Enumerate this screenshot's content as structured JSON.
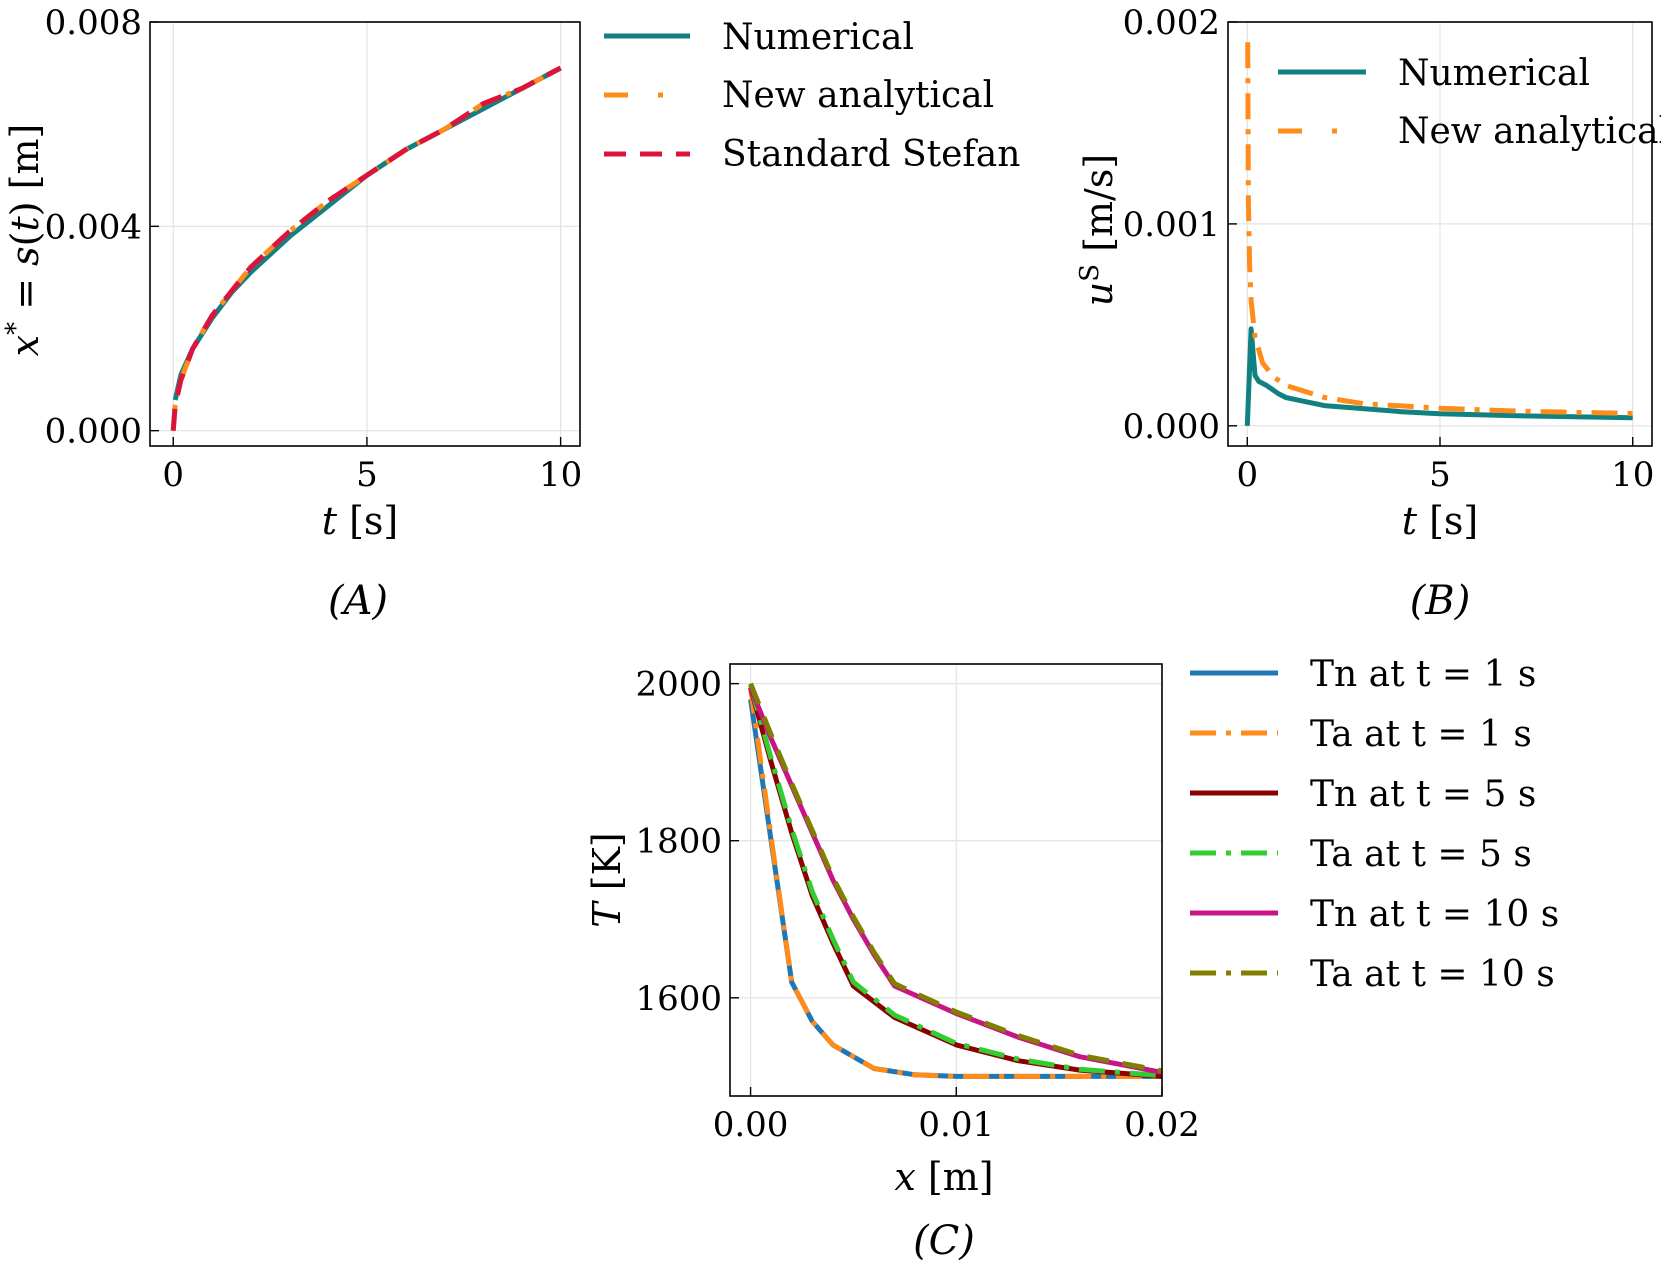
{
  "chart_data": [
    {
      "id": "A",
      "type": "line",
      "panel_label": "(A)",
      "xlabel": "t [s]",
      "ylabel": "x* = s(t) [m]",
      "xlim": [
        -0.6,
        10.5
      ],
      "ylim": [
        -0.0003,
        0.008
      ],
      "xticks": [
        0,
        5,
        10
      ],
      "xtick_labels": [
        "0",
        "5",
        "10"
      ],
      "yticks": [
        0.0,
        0.004,
        0.008
      ],
      "ytick_labels": [
        "0.000",
        "0.004",
        "0.008"
      ],
      "grid": true,
      "legend_position": "outside-right",
      "series": [
        {
          "name": "Numerical",
          "color": "#108080",
          "style": "solid",
          "x": [
            0.05,
            0.2,
            0.5,
            1,
            1.5,
            2,
            3,
            4,
            5,
            6,
            6.5,
            7,
            8,
            9,
            10
          ],
          "y": [
            0.0006,
            0.0011,
            0.0016,
            0.0022,
            0.0027,
            0.0031,
            0.0038,
            0.0044,
            0.005,
            0.0055,
            0.0057,
            0.0059,
            0.0063,
            0.0067,
            0.0071
          ]
        },
        {
          "name": "New analytical",
          "color": "#ff8c1a",
          "style": "dashdot",
          "x": [
            0,
            0.05,
            0.2,
            0.5,
            1,
            2,
            3,
            4,
            5,
            6,
            7,
            8,
            9,
            10
          ],
          "y": [
            0,
            0.0005,
            0.001,
            0.0016,
            0.00225,
            0.0032,
            0.0039,
            0.0045,
            0.005,
            0.0055,
            0.0059,
            0.0064,
            0.0067,
            0.0071
          ]
        },
        {
          "name": "Standard Stefan",
          "color": "#dc143c",
          "style": "dashed",
          "x": [
            0,
            0.05,
            0.2,
            0.5,
            1,
            2,
            3,
            4,
            5,
            6,
            7,
            8,
            9,
            10
          ],
          "y": [
            0,
            0.0005,
            0.001,
            0.0016,
            0.00225,
            0.0032,
            0.0039,
            0.0045,
            0.005,
            0.0055,
            0.0059,
            0.0064,
            0.0067,
            0.0071
          ]
        }
      ]
    },
    {
      "id": "B",
      "type": "line",
      "panel_label": "(B)",
      "xlabel": "t [s]",
      "ylabel": "u^S [m/s]",
      "xlim": [
        -0.5,
        10.5
      ],
      "ylim": [
        -0.0001,
        0.002
      ],
      "xticks": [
        0,
        5,
        10
      ],
      "xtick_labels": [
        "0",
        "5",
        "10"
      ],
      "yticks": [
        0.0,
        0.001,
        0.002
      ],
      "ytick_labels": [
        "0.000",
        "0.001",
        "0.002"
      ],
      "grid": true,
      "legend_position": "upper-right",
      "series": [
        {
          "name": "Numerical",
          "color": "#108080",
          "style": "solid",
          "x": [
            0,
            0.1,
            0.2,
            0.3,
            0.5,
            0.8,
            1,
            1.5,
            2,
            3,
            4,
            5,
            7,
            10
          ],
          "y": [
            0,
            0.00048,
            0.00025,
            0.00022,
            0.0002,
            0.00016,
            0.00014,
            0.00012,
            0.0001,
            8.5e-05,
            7e-05,
            6e-05,
            5e-05,
            4e-05
          ]
        },
        {
          "name": "New analytical",
          "color": "#ff8c1a",
          "style": "dashdot",
          "x": [
            0.01,
            0.03,
            0.06,
            0.1,
            0.2,
            0.4,
            0.7,
            1,
            2,
            3,
            5,
            7,
            10
          ],
          "y": [
            0.0019,
            0.0011,
            0.0008,
            0.00062,
            0.00044,
            0.00031,
            0.00024,
            0.0002,
            0.00014,
            0.00011,
            8.7e-05,
            7.3e-05,
            6.1e-05
          ]
        }
      ]
    },
    {
      "id": "C",
      "type": "line",
      "panel_label": "(C)",
      "xlabel": "x [m]",
      "ylabel": "T [K]",
      "xlim": [
        -0.001,
        0.02
      ],
      "ylim": [
        1475,
        2025
      ],
      "xticks": [
        0.0,
        0.01,
        0.02
      ],
      "xtick_labels": [
        "0.00",
        "0.01",
        "0.02"
      ],
      "yticks": [
        1600,
        1800,
        2000
      ],
      "ytick_labels": [
        "1600",
        "1800",
        "2000"
      ],
      "grid": true,
      "legend_position": "outside-right",
      "series": [
        {
          "name": "Tn at t = 1 s",
          "color": "#1f77b4",
          "style": "solid",
          "x": [
            0,
            0.001,
            0.002,
            0.003,
            0.004,
            0.006,
            0.008,
            0.01,
            0.015,
            0.02
          ],
          "y": [
            1980,
            1800,
            1620,
            1570,
            1540,
            1510,
            1502,
            1500,
            1500,
            1500
          ]
        },
        {
          "name": "Ta at t = 1 s",
          "color": "#ff8c1a",
          "style": "dashdot",
          "x": [
            0,
            0.001,
            0.002,
            0.003,
            0.004,
            0.006,
            0.008,
            0.01,
            0.015,
            0.02
          ],
          "y": [
            1995,
            1805,
            1620,
            1570,
            1540,
            1510,
            1502,
            1500,
            1500,
            1500
          ]
        },
        {
          "name": "Tn at t = 5 s",
          "color": "#8b0000",
          "style": "solid",
          "x": [
            0,
            0.001,
            0.002,
            0.003,
            0.004,
            0.005,
            0.007,
            0.01,
            0.013,
            0.016,
            0.02
          ],
          "y": [
            1995,
            1900,
            1810,
            1730,
            1670,
            1615,
            1575,
            1540,
            1520,
            1508,
            1500
          ]
        },
        {
          "name": "Ta at t = 5 s",
          "color": "#32cd32",
          "style": "dashdot",
          "x": [
            0,
            0.001,
            0.002,
            0.003,
            0.004,
            0.005,
            0.007,
            0.01,
            0.013,
            0.016,
            0.02
          ],
          "y": [
            1998,
            1905,
            1815,
            1735,
            1675,
            1620,
            1578,
            1542,
            1522,
            1509,
            1501
          ]
        },
        {
          "name": "Tn at t = 10 s",
          "color": "#c71585",
          "style": "solid",
          "x": [
            0,
            0.001,
            0.002,
            0.003,
            0.004,
            0.005,
            0.006,
            0.007,
            0.01,
            0.013,
            0.016,
            0.02
          ],
          "y": [
            1995,
            1930,
            1870,
            1810,
            1750,
            1700,
            1655,
            1615,
            1580,
            1550,
            1525,
            1505
          ]
        },
        {
          "name": "Ta at t = 10 s",
          "color": "#808000",
          "style": "dashed",
          "x": [
            0,
            0.001,
            0.002,
            0.003,
            0.004,
            0.005,
            0.006,
            0.007,
            0.01,
            0.013,
            0.016,
            0.02
          ],
          "y": [
            2000,
            1935,
            1873,
            1813,
            1753,
            1703,
            1658,
            1618,
            1582,
            1552,
            1527,
            1507
          ]
        }
      ]
    }
  ]
}
